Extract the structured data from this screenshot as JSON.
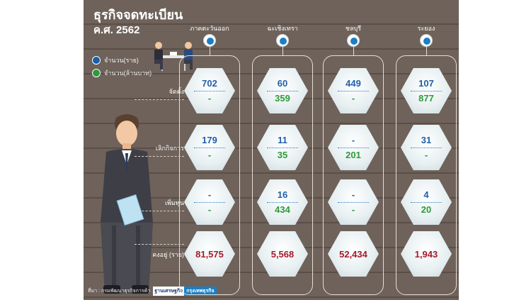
{
  "title": "ธุรกิจจดทะเบียน",
  "subtitle": "ค.ศ. 2562",
  "legend": {
    "count": {
      "label": "จำนวน(ราย)",
      "color": "#1a5fa8"
    },
    "capital": {
      "label": "จำนวน(ล้านบาท)",
      "color": "#2e9a3a"
    }
  },
  "columns": [
    {
      "name": "ภาคตะวันออก"
    },
    {
      "name": "ฉะเชิงเทรา"
    },
    {
      "name": "ชลบุรี"
    },
    {
      "name": "ระยอง"
    }
  ],
  "rows": [
    {
      "label": "จัดตั้ง",
      "values": [
        [
          "702",
          "-"
        ],
        [
          "60",
          "359"
        ],
        [
          "449",
          "-"
        ],
        [
          "107",
          "877"
        ]
      ]
    },
    {
      "label": "เลิกกิจการ",
      "values": [
        [
          "179",
          "-"
        ],
        [
          "11",
          "35"
        ],
        [
          "-",
          "201"
        ],
        [
          "31",
          "-"
        ]
      ]
    },
    {
      "label": "เพิ่มทุน",
      "values": [
        [
          "-",
          "-"
        ],
        [
          "16",
          "434"
        ],
        [
          "-",
          "-"
        ],
        [
          "4",
          "20"
        ]
      ]
    }
  ],
  "totals": {
    "label": "คงอยู่ (ราย)",
    "values": [
      "81,575",
      "5,568",
      "52,434",
      "1,943"
    ]
  },
  "source": {
    "text": "ที่มา : กรมพัฒนาธุรกิจการค้า",
    "logo_a": "ฐานเศรษฐกิจ",
    "logo_b": "กรุงเทพธุรกิจ"
  }
}
